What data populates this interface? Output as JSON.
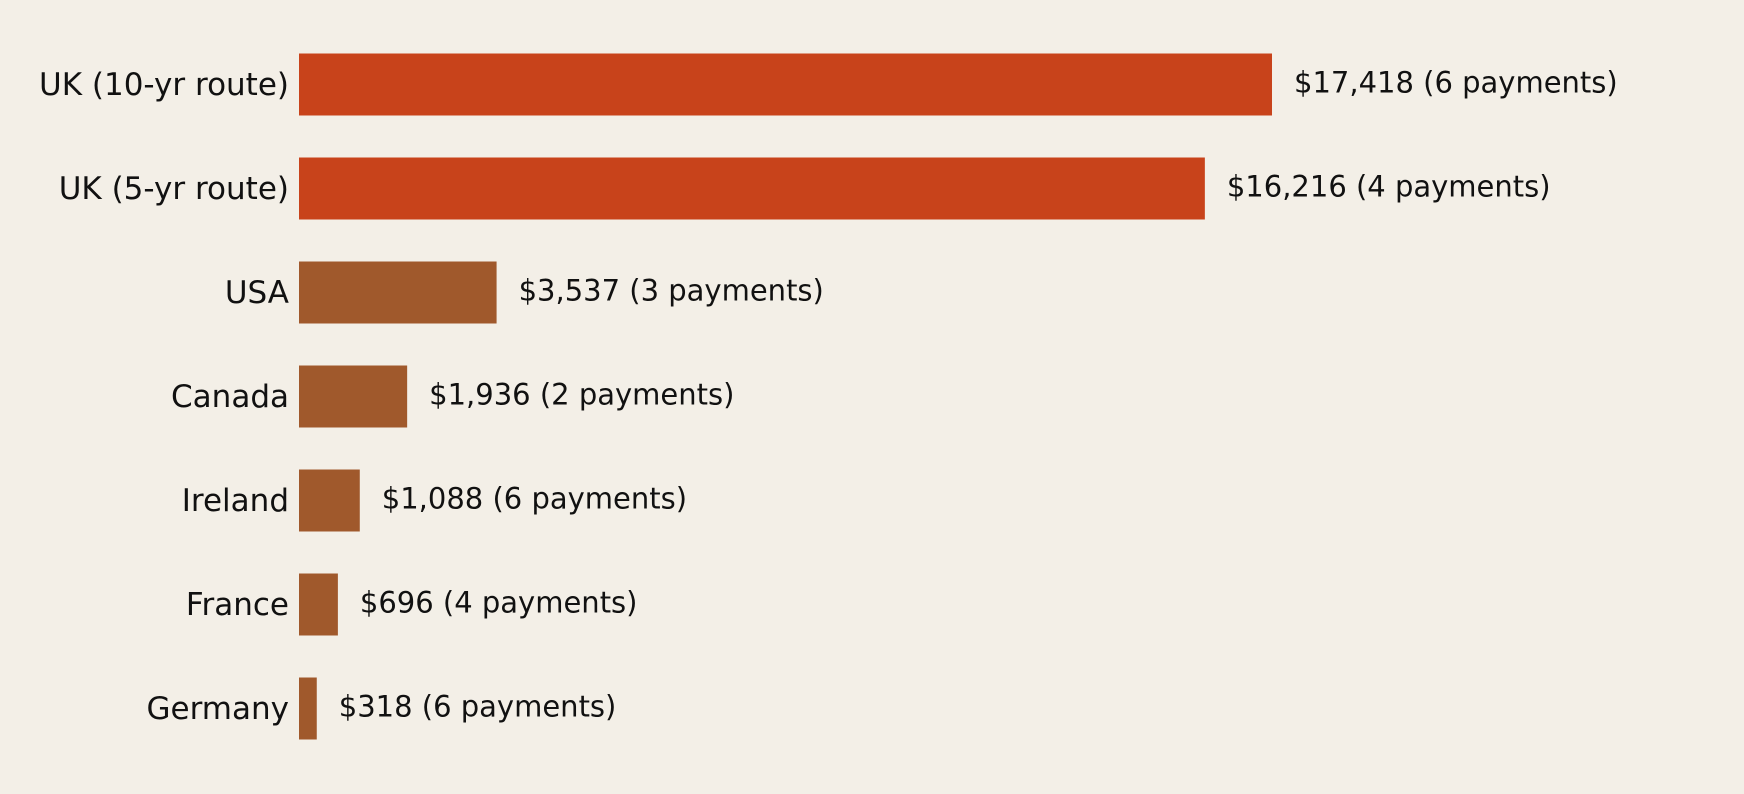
{
  "chart_data": {
    "type": "bar",
    "orientation": "horizontal",
    "categories": [
      "UK (10-yr route)",
      "UK (5-yr route)",
      "USA",
      "Canada",
      "Ireland",
      "France",
      "Germany"
    ],
    "values": [
      17418,
      16216,
      3537,
      1936,
      1088,
      696,
      318
    ],
    "value_labels": [
      "$17,418  (6 payments)",
      "$16,216  (4 payments)",
      "$3,537  (3 payments)",
      "$1,936  (2 payments)",
      "$1,088  (6 payments)",
      "$696  (4 payments)",
      "$318  (6 payments)"
    ],
    "colors": [
      "#c8431b",
      "#c8431b",
      "#a0592c",
      "#a0592c",
      "#a0592c",
      "#a0592c",
      "#a0592c"
    ]
  }
}
